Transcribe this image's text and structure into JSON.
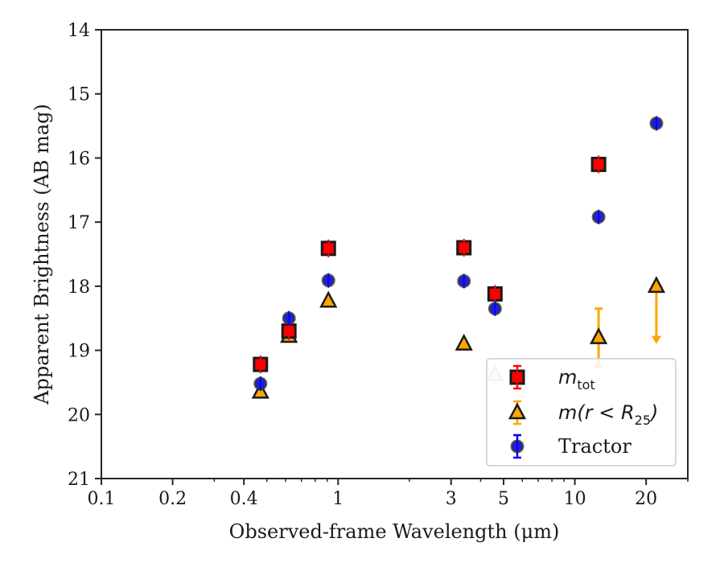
{
  "chart_data": {
    "type": "scatter",
    "xlabel": "Observed-frame Wavelength (μm)",
    "ylabel": "Apparent Brightness (AB mag)",
    "xscale": "log",
    "xlim": [
      0.1,
      30
    ],
    "ylim": [
      21,
      14
    ],
    "y_inverted": true,
    "xticks": [
      0.1,
      0.2,
      0.4,
      1,
      3,
      5,
      10,
      20
    ],
    "xtick_labels": [
      "0.1",
      "0.2",
      "0.4",
      "1",
      "3",
      "5",
      "10",
      "20"
    ],
    "yticks": [
      14,
      15,
      16,
      17,
      18,
      19,
      20,
      21
    ],
    "ytick_labels": [
      "14",
      "15",
      "16",
      "17",
      "18",
      "19",
      "20",
      "21"
    ],
    "grid": false,
    "legend_position": "lower-right",
    "series": [
      {
        "name": "m_tot",
        "legend_main": "m",
        "legend_sub": "tot",
        "marker": "square",
        "color": "#ff0000",
        "edge_color": "#1a1a1a",
        "errbar_color": "#ff0000",
        "points": [
          {
            "x": 0.47,
            "y": 19.22
          },
          {
            "x": 0.62,
            "y": 18.7
          },
          {
            "x": 0.91,
            "y": 17.41
          },
          {
            "x": 3.4,
            "y": 17.4
          },
          {
            "x": 4.6,
            "y": 18.12
          },
          {
            "x": 12.6,
            "y": 16.1
          }
        ]
      },
      {
        "name": "m(r < R_25)",
        "legend_main": "m(r < R",
        "legend_sub": "25",
        "legend_close": ")",
        "marker": "triangle",
        "color": "#ffa500",
        "edge_color": "#1a1a1a",
        "errbar_color": "#ffa500",
        "points": [
          {
            "x": 0.47,
            "y": 19.65
          },
          {
            "x": 0.62,
            "y": 18.78
          },
          {
            "x": 0.91,
            "y": 18.23
          },
          {
            "x": 3.4,
            "y": 18.9
          },
          {
            "x": 4.6,
            "y": 19.38,
            "faded": true
          },
          {
            "x": 12.6,
            "y": 18.8,
            "yerr_up": 0.45,
            "yerr_down": 0.45
          },
          {
            "x": 22.1,
            "y": 18.0,
            "upper_limit_to": 18.85
          }
        ]
      },
      {
        "name": "Tractor",
        "legend_main": "Tractor",
        "marker": "circle",
        "color": "#1f1fdd",
        "edge_color": "#333333",
        "errbar_color": "#0000ff",
        "points": [
          {
            "x": 0.47,
            "y": 19.52
          },
          {
            "x": 0.62,
            "y": 18.5
          },
          {
            "x": 0.91,
            "y": 17.91
          },
          {
            "x": 3.4,
            "y": 17.92
          },
          {
            "x": 4.6,
            "y": 18.35
          },
          {
            "x": 12.6,
            "y": 16.92
          },
          {
            "x": 22.1,
            "y": 15.46
          }
        ]
      }
    ]
  }
}
